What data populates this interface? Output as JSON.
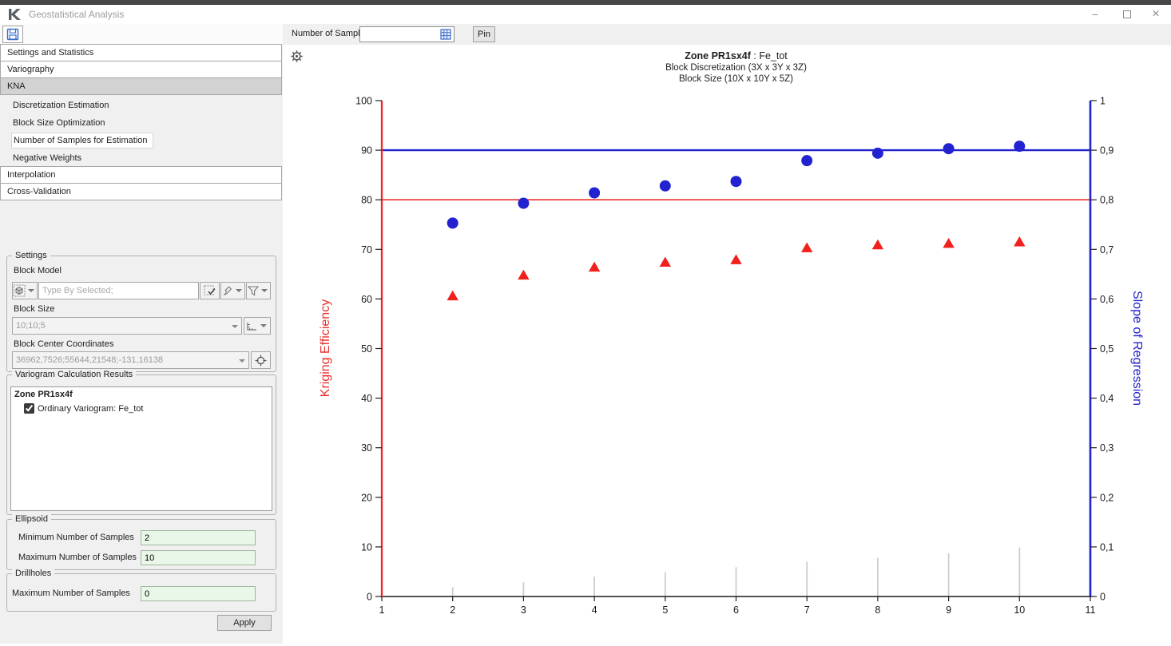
{
  "window": {
    "title": "Geostatistical Analysis",
    "minimize_glyph": "−",
    "close_glyph": "×"
  },
  "toolbar": {
    "number_of_samples_label": "Number of Samples",
    "samples_value": "",
    "pin_label": "Pin"
  },
  "sidebar": {
    "items": [
      {
        "label": "Settings and Statistics",
        "type": "header",
        "selected": false
      },
      {
        "label": "Variography",
        "type": "header",
        "selected": false
      },
      {
        "label": "KNA",
        "type": "header",
        "selected": true
      },
      {
        "label": "Discretization Estimation",
        "type": "sub",
        "selected": false
      },
      {
        "label": "Block Size Optimization",
        "type": "sub",
        "selected": false
      },
      {
        "label": "Number of Samples for Estimation",
        "type": "sub",
        "selected": true
      },
      {
        "label": "Negative Weights",
        "type": "sub",
        "selected": false
      },
      {
        "label": "Interpolation",
        "type": "header",
        "selected": false
      },
      {
        "label": "Cross-Validation",
        "type": "header",
        "selected": false
      }
    ]
  },
  "settings": {
    "group_label": "Settings",
    "block_model_label": "Block Model",
    "block_model_placeholder": "Type By Selected;",
    "block_size_label": "Block Size",
    "block_size_value": "10;10;5",
    "block_center_label": "Block Center Coordinates",
    "block_center_value": "36962,7526;55644,21548;-131,16138"
  },
  "variogram_results": {
    "group_label": "Variogram Calculation Results",
    "zone_label": "Zone PR1sx4f",
    "item_checked": true,
    "item_label": "Ordinary Variogram: Fe_tot"
  },
  "ellipsoid": {
    "group_label": "Ellipsoid",
    "min_label": "Minimum Number of Samples",
    "min_value": "2",
    "max_label": "Maximum Number of Samples",
    "max_value": "10"
  },
  "drillholes": {
    "group_label": "Drillholes",
    "max_label": "Maximum Number of Samples",
    "max_value": "0"
  },
  "actions": {
    "apply_label": "Apply"
  },
  "chart_data": {
    "type": "scatter",
    "title_zone": "Zone PR1sx4f",
    "title_metric": " : Fe_tot",
    "subtitle1": "Block Discretization (3X x 3Y x 3Z)",
    "subtitle2": "Block Size (10X x 10Y x 5Z)",
    "xlim": [
      1,
      11
    ],
    "x_ticks": [
      1,
      2,
      3,
      4,
      5,
      6,
      7,
      8,
      9,
      10,
      11
    ],
    "x": [
      2,
      3,
      4,
      5,
      6,
      7,
      8,
      9,
      10
    ],
    "left_axis": {
      "label": "Kriging Efficiency",
      "color": "#e8312f",
      "range": [
        0,
        100
      ],
      "ticks": [
        0,
        10,
        20,
        30,
        40,
        50,
        60,
        70,
        80,
        90,
        100
      ]
    },
    "right_axis": {
      "label": "Slope of Regression",
      "color": "#2222d0",
      "range": [
        0,
        1
      ],
      "ticks": [
        0,
        0.1,
        0.2,
        0.3,
        0.4,
        0.5,
        0.6,
        0.7,
        0.8,
        0.9,
        1
      ],
      "tick_labels": [
        "0",
        "0,1",
        "0,2",
        "0,3",
        "0,4",
        "0,5",
        "0,6",
        "0,7",
        "0,8",
        "0,9",
        "1"
      ]
    },
    "series": [
      {
        "name": "Kriging Efficiency",
        "axis": "left",
        "marker": "triangle",
        "color": "#f1201d",
        "values": [
          60.6,
          64.8,
          66.4,
          67.4,
          67.9,
          70.3,
          70.9,
          71.2,
          71.5
        ]
      },
      {
        "name": "Slope of Regression",
        "axis": "right",
        "marker": "circle",
        "color": "#2222d0",
        "values": [
          0.753,
          0.793,
          0.814,
          0.828,
          0.837,
          0.879,
          0.894,
          0.903,
          0.908
        ]
      }
    ],
    "reference_lines": [
      {
        "axis": "left",
        "value": 80,
        "color": "#e8312f"
      },
      {
        "axis": "right",
        "value": 0.9,
        "color": "#2222d0"
      }
    ],
    "spikes": {
      "color": "#cdcdcd",
      "x": [
        2,
        3,
        4,
        5,
        6,
        7,
        8,
        9,
        10
      ],
      "values": [
        1.9,
        2.9,
        4.0,
        4.9,
        5.9,
        7.0,
        7.8,
        8.7,
        9.9
      ]
    },
    "grid": false,
    "legend": "none"
  }
}
